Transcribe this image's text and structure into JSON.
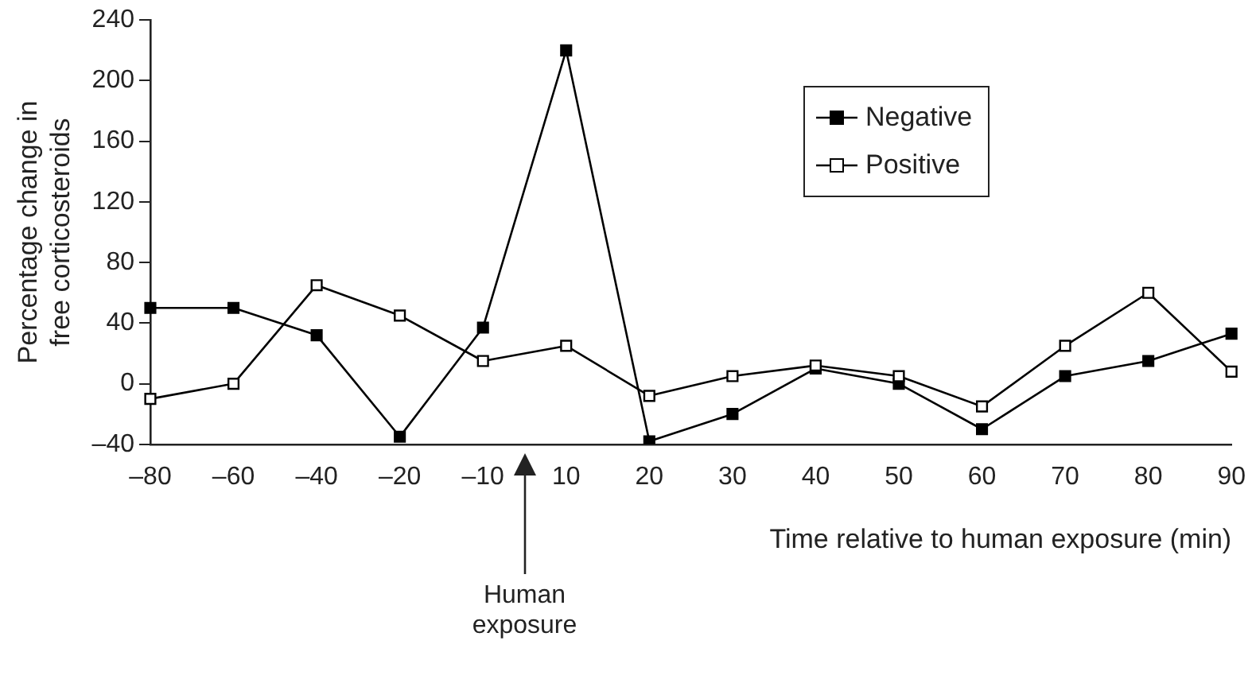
{
  "chart_data": {
    "type": "line",
    "xlabel": "Time relative to human exposure (min)",
    "ylabel": "Percentage change in free corticosteroids",
    "categories": [
      "–80",
      "–60",
      "–40",
      "–20",
      "–10",
      "10",
      "20",
      "30",
      "40",
      "50",
      "60",
      "70",
      "80",
      "90"
    ],
    "series": [
      {
        "name": "Negative",
        "color": "#000000",
        "values": [
          50,
          50,
          32,
          -35,
          37,
          220,
          -38,
          -20,
          10,
          0,
          -30,
          5,
          15,
          33
        ]
      },
      {
        "name": "Positive",
        "color": "#000000",
        "values": [
          -10,
          0,
          65,
          45,
          15,
          25,
          -8,
          5,
          12,
          5,
          -15,
          25,
          60,
          8
        ]
      }
    ],
    "ylim": [
      -40,
      240
    ],
    "yticks": [
      {
        "value": -40,
        "label": "–40"
      },
      0,
      40,
      80,
      120,
      160,
      200,
      240
    ],
    "grid": false,
    "legend": "top right",
    "marker": "square",
    "line_style": "solid",
    "annotations": [
      "Human exposure"
    ]
  }
}
